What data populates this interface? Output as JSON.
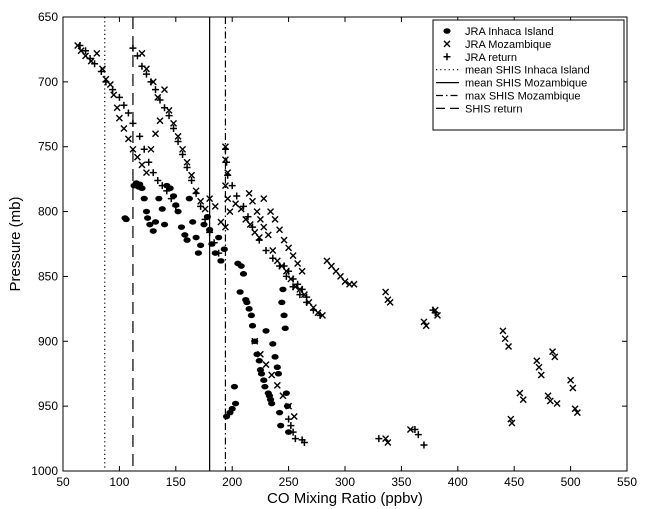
{
  "chart_data": {
    "type": "scatter",
    "title": "",
    "xlabel": "CO Mixing Ratio (ppbv)",
    "ylabel": "Pressure (mb)",
    "xlim": [
      50,
      550
    ],
    "ylim": [
      650,
      1000
    ],
    "y_inverted": true,
    "xticks": [
      50,
      100,
      150,
      200,
      250,
      300,
      350,
      400,
      450,
      500,
      550
    ],
    "yticks": [
      650,
      700,
      750,
      800,
      850,
      900,
      950,
      1000
    ],
    "grid": false,
    "legend_position": "top-right",
    "series": [
      {
        "name": "JRA Inhaca Island",
        "marker": "dot",
        "points": [
          [
            105,
            805
          ],
          [
            106,
            806
          ],
          [
            113,
            780
          ],
          [
            115,
            778
          ],
          [
            117,
            781
          ],
          [
            118,
            779
          ],
          [
            120,
            782
          ],
          [
            122,
            790
          ],
          [
            124,
            800
          ],
          [
            125,
            805
          ],
          [
            127,
            810
          ],
          [
            130,
            815
          ],
          [
            132,
            808
          ],
          [
            135,
            790
          ],
          [
            138,
            798
          ],
          [
            140,
            810
          ],
          [
            142,
            780
          ],
          [
            145,
            782
          ],
          [
            148,
            788
          ],
          [
            150,
            795
          ],
          [
            152,
            800
          ],
          [
            155,
            812
          ],
          [
            158,
            818
          ],
          [
            160,
            822
          ],
          [
            162,
            790
          ],
          [
            165,
            808
          ],
          [
            168,
            820
          ],
          [
            170,
            832
          ],
          [
            172,
            826
          ],
          [
            175,
            810
          ],
          [
            178,
            804
          ],
          [
            180,
            814
          ],
          [
            182,
            825
          ],
          [
            185,
            832
          ],
          [
            188,
            820
          ],
          [
            190,
            838
          ],
          [
            193,
            829
          ],
          [
            195,
            958
          ],
          [
            198,
            955
          ],
          [
            200,
            952
          ],
          [
            202,
            935
          ],
          [
            203,
            948
          ],
          [
            205,
            840
          ],
          [
            207,
            862
          ],
          [
            208,
            842
          ],
          [
            210,
            848
          ],
          [
            212,
            868
          ],
          [
            213,
            870
          ],
          [
            215,
            875
          ],
          [
            217,
            880
          ],
          [
            218,
            888
          ],
          [
            220,
            900
          ],
          [
            222,
            910
          ],
          [
            224,
            915
          ],
          [
            225,
            922
          ],
          [
            226,
            925
          ],
          [
            228,
            930
          ],
          [
            229,
            935
          ],
          [
            230,
            892
          ],
          [
            232,
            940
          ],
          [
            233,
            942
          ],
          [
            234,
            945
          ],
          [
            235,
            948
          ],
          [
            236,
            902
          ],
          [
            238,
            912
          ],
          [
            240,
            920
          ],
          [
            241,
            925
          ],
          [
            242,
            955
          ],
          [
            243,
            965
          ],
          [
            244,
            870
          ],
          [
            245,
            860
          ],
          [
            246,
            880
          ],
          [
            247,
            890
          ],
          [
            248,
            940
          ],
          [
            249,
            950
          ],
          [
            250,
            970
          ]
        ]
      },
      {
        "name": "JRA Mozambique",
        "marker": "x",
        "points": [
          [
            63,
            672
          ],
          [
            66,
            676
          ],
          [
            70,
            680
          ],
          [
            75,
            684
          ],
          [
            80,
            678
          ],
          [
            85,
            690
          ],
          [
            88,
            698
          ],
          [
            92,
            702
          ],
          [
            95,
            710
          ],
          [
            98,
            720
          ],
          [
            100,
            728
          ],
          [
            104,
            736
          ],
          [
            108,
            744
          ],
          [
            112,
            752
          ],
          [
            116,
            758
          ],
          [
            120,
            764
          ],
          [
            124,
            770
          ],
          [
            128,
            752
          ],
          [
            132,
            740
          ],
          [
            136,
            730
          ],
          [
            120,
            678
          ],
          [
            124,
            690
          ],
          [
            130,
            700
          ],
          [
            134,
            712
          ],
          [
            140,
            706
          ],
          [
            144,
            722
          ],
          [
            148,
            732
          ],
          [
            152,
            742
          ],
          [
            156,
            752
          ],
          [
            160,
            762
          ],
          [
            164,
            772
          ],
          [
            168,
            784
          ],
          [
            172,
            792
          ],
          [
            176,
            798
          ],
          [
            180,
            790
          ],
          [
            185,
            796
          ],
          [
            190,
            808
          ],
          [
            194,
            812
          ],
          [
            198,
            800
          ],
          [
            203,
            794
          ],
          [
            208,
            798
          ],
          [
            212,
            806
          ],
          [
            216,
            810
          ],
          [
            220,
            816
          ],
          [
            224,
            820
          ],
          [
            228,
            812
          ],
          [
            232,
            818
          ],
          [
            236,
            830
          ],
          [
            240,
            838
          ],
          [
            244,
            842
          ],
          [
            248,
            846
          ],
          [
            252,
            852
          ],
          [
            256,
            858
          ],
          [
            260,
            860
          ],
          [
            264,
            864
          ],
          [
            268,
            870
          ],
          [
            272,
            874
          ],
          [
            276,
            878
          ],
          [
            280,
            880
          ],
          [
            284,
            838
          ],
          [
            288,
            842
          ],
          [
            292,
            846
          ],
          [
            296,
            850
          ],
          [
            300,
            854
          ],
          [
            304,
            856
          ],
          [
            308,
            856
          ],
          [
            194,
            750
          ],
          [
            194,
            760
          ],
          [
            196,
            770
          ],
          [
            194,
            780
          ],
          [
            196,
            790
          ],
          [
            215,
            786
          ],
          [
            218,
            792
          ],
          [
            222,
            800
          ],
          [
            225,
            806
          ],
          [
            228,
            790
          ],
          [
            234,
            800
          ],
          [
            238,
            806
          ],
          [
            242,
            814
          ],
          [
            246,
            822
          ],
          [
            250,
            828
          ],
          [
            254,
            834
          ],
          [
            258,
            840
          ],
          [
            262,
            846
          ],
          [
            220,
            900
          ],
          [
            225,
            910
          ],
          [
            230,
            918
          ],
          [
            235,
            926
          ],
          [
            240,
            934
          ],
          [
            245,
            942
          ],
          [
            250,
            950
          ],
          [
            255,
            958
          ],
          [
            336,
            862
          ],
          [
            338,
            868
          ],
          [
            340,
            870
          ],
          [
            336,
            975
          ],
          [
            338,
            978
          ],
          [
            358,
            968
          ],
          [
            370,
            885
          ],
          [
            372,
            888
          ],
          [
            380,
            876
          ],
          [
            382,
            880
          ],
          [
            440,
            892
          ],
          [
            442,
            898
          ],
          [
            445,
            904
          ],
          [
            447,
            960
          ],
          [
            448,
            963
          ],
          [
            455,
            940
          ],
          [
            458,
            945
          ],
          [
            470,
            915
          ],
          [
            472,
            920
          ],
          [
            474,
            926
          ],
          [
            480,
            942
          ],
          [
            482,
            946
          ],
          [
            484,
            908
          ],
          [
            486,
            912
          ],
          [
            488,
            948
          ],
          [
            500,
            930
          ],
          [
            502,
            936
          ],
          [
            504,
            952
          ],
          [
            506,
            955
          ]
        ]
      },
      {
        "name": "JRA return",
        "marker": "plus",
        "points": [
          [
            65,
            672
          ],
          [
            70,
            676
          ],
          [
            74,
            682
          ],
          [
            78,
            686
          ],
          [
            84,
            692
          ],
          [
            88,
            700
          ],
          [
            94,
            706
          ],
          [
            100,
            712
          ],
          [
            104,
            718
          ],
          [
            108,
            724
          ],
          [
            112,
            732
          ],
          [
            118,
            742
          ],
          [
            122,
            752
          ],
          [
            126,
            762
          ],
          [
            130,
            770
          ],
          [
            134,
            776
          ],
          [
            138,
            780
          ],
          [
            142,
            784
          ],
          [
            146,
            790
          ],
          [
            150,
            796
          ],
          [
            112,
            674
          ],
          [
            116,
            680
          ],
          [
            120,
            688
          ],
          [
            124,
            694
          ],
          [
            128,
            700
          ],
          [
            132,
            706
          ],
          [
            136,
            714
          ],
          [
            140,
            720
          ],
          [
            144,
            726
          ],
          [
            148,
            736
          ],
          [
            152,
            746
          ],
          [
            156,
            756
          ],
          [
            160,
            766
          ],
          [
            164,
            776
          ],
          [
            168,
            786
          ],
          [
            172,
            796
          ],
          [
            176,
            806
          ],
          [
            180,
            816
          ],
          [
            184,
            824
          ],
          [
            188,
            832
          ],
          [
            194,
            752
          ],
          [
            195,
            762
          ],
          [
            196,
            772
          ],
          [
            200,
            780
          ],
          [
            204,
            788
          ],
          [
            210,
            796
          ],
          [
            214,
            804
          ],
          [
            218,
            812
          ],
          [
            224,
            822
          ],
          [
            230,
            830
          ],
          [
            236,
            836
          ],
          [
            242,
            842
          ],
          [
            248,
            850
          ],
          [
            254,
            858
          ],
          [
            260,
            864
          ],
          [
            266,
            870
          ],
          [
            272,
            876
          ],
          [
            278,
            880
          ],
          [
            246,
            842
          ],
          [
            250,
            846
          ],
          [
            254,
            852
          ],
          [
            258,
            856
          ],
          [
            262,
            860
          ],
          [
            266,
            866
          ],
          [
            250,
            960
          ],
          [
            252,
            965
          ],
          [
            254,
            970
          ],
          [
            256,
            975
          ],
          [
            262,
            976
          ],
          [
            264,
            978
          ],
          [
            330,
            975
          ],
          [
            362,
            968
          ],
          [
            365,
            972
          ],
          [
            370,
            980
          ],
          [
            378,
            876
          ],
          [
            380,
            878
          ]
        ]
      }
    ],
    "reference_lines": [
      {
        "name": "mean SHIS Inhaca Island",
        "style": "dotted",
        "x": 87
      },
      {
        "name": "mean SHIS Mozambique",
        "style": "solid",
        "x": 180
      },
      {
        "name": "max SHIS Mozambique",
        "style": "dashdot",
        "x": 194
      },
      {
        "name": "SHIS return",
        "style": "dashed",
        "x": 112
      }
    ]
  }
}
